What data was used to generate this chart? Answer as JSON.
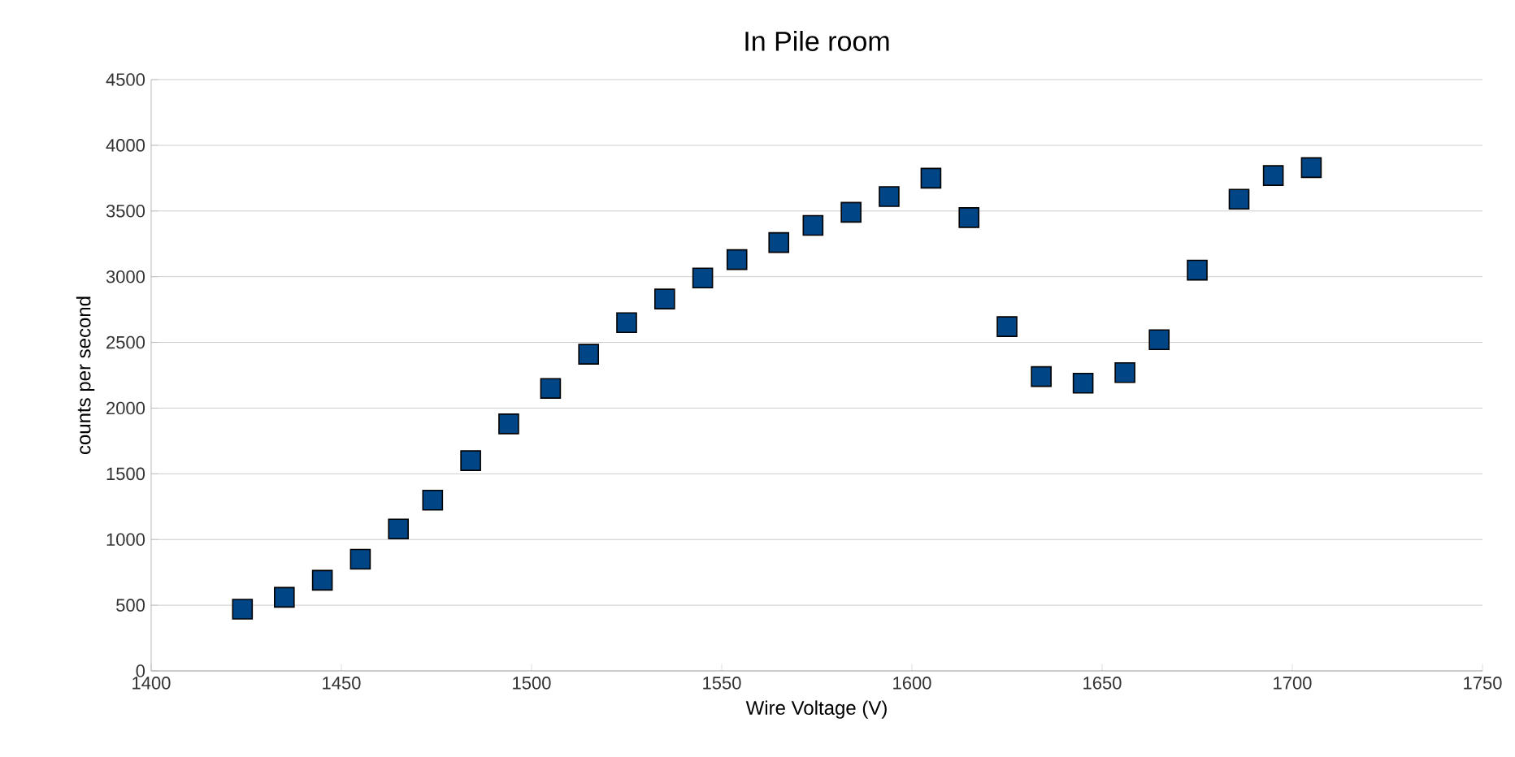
{
  "chart_data": {
    "type": "scatter",
    "title": "In Pile room",
    "xlabel": "Wire Voltage (V)",
    "ylabel": "counts per second",
    "x": [
      1424,
      1435,
      1445,
      1455,
      1465,
      1474,
      1484,
      1494,
      1505,
      1515,
      1525,
      1535,
      1545,
      1554,
      1565,
      1574,
      1584,
      1594,
      1605,
      1615,
      1625,
      1634,
      1645,
      1656,
      1665,
      1675,
      1686,
      1695,
      1705
    ],
    "values": [
      470,
      560,
      690,
      850,
      1080,
      1300,
      1600,
      1880,
      2150,
      2410,
      2650,
      2830,
      2990,
      3130,
      3260,
      3390,
      3490,
      3610,
      3750,
      3450,
      2620,
      2240,
      2190,
      2270,
      2520,
      3050,
      3590,
      3770,
      3830
    ],
    "color": "#004586",
    "marker": "square",
    "grid": "y",
    "xlim": [
      1400,
      1750
    ],
    "xticks": [
      1400,
      1450,
      1500,
      1550,
      1600,
      1650,
      1700,
      1750
    ],
    "ylim": [
      0,
      4500
    ],
    "yticks": [
      0,
      500,
      1000,
      1500,
      2000,
      2500,
      3000,
      3500,
      4000,
      4500
    ]
  }
}
